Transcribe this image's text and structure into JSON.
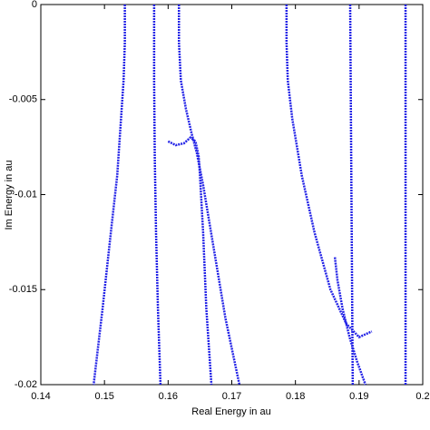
{
  "chart_data": {
    "type": "line",
    "x_label": "Real Energy in au",
    "y_label": "Im Energy in au",
    "xlim": [
      0.14,
      0.2
    ],
    "xticks": [
      0.14,
      0.15,
      0.16,
      0.17,
      0.18,
      0.19,
      0.2
    ],
    "ylim": [
      -0.02,
      0
    ],
    "yticks": [
      0,
      -0.005,
      -0.01,
      -0.015,
      -0.02
    ],
    "color": "#2323e6",
    "series": [
      {
        "x": [
          0.1532,
          0.1532,
          0.153,
          0.1526,
          0.152,
          0.151,
          0.1497,
          0.1483
        ],
        "values": [
          0,
          -0.002,
          -0.004,
          -0.006,
          -0.009,
          -0.012,
          -0.016,
          -0.02
        ]
      },
      {
        "x": [
          0.1578,
          0.1578,
          0.1579,
          0.1581,
          0.1584,
          0.1588
        ],
        "values": [
          0,
          -0.004,
          -0.008,
          -0.012,
          -0.016,
          -0.02
        ]
      },
      {
        "x": [
          0.1617,
          0.1617,
          0.162,
          0.1628,
          0.1637,
          0.1645,
          0.1655,
          0.167,
          0.169,
          0.1712
        ],
        "values": [
          0,
          -0.002,
          -0.004,
          -0.0055,
          -0.0068,
          -0.0078,
          -0.0095,
          -0.0125,
          -0.0165,
          -0.02
        ]
      },
      {
        "x": [
          0.16,
          0.1612,
          0.1625,
          0.1635,
          0.1643,
          0.1648,
          0.165,
          0.1655,
          0.166,
          0.1668
        ],
        "values": [
          -0.0072,
          -0.0074,
          -0.0073,
          -0.007,
          -0.0072,
          -0.008,
          -0.009,
          -0.012,
          -0.016,
          -0.02
        ]
      },
      {
        "x": [
          0.1786,
          0.1786,
          0.1788,
          0.1795,
          0.181,
          0.183,
          0.1855,
          0.188,
          0.19,
          0.192
        ],
        "values": [
          0,
          -0.002,
          -0.004,
          -0.006,
          -0.009,
          -0.012,
          -0.015,
          -0.0168,
          -0.0175,
          -0.0172
        ]
      },
      {
        "x": [
          0.1886,
          0.1887,
          0.1888,
          0.1889,
          0.189
        ],
        "values": [
          0,
          -0.005,
          -0.01,
          -0.015,
          -0.02
        ]
      },
      {
        "x": [
          0.1973,
          0.1973,
          0.1973
        ],
        "values": [
          0,
          -0.01,
          -0.02
        ]
      },
      {
        "x": [
          0.1862,
          0.1866,
          0.1874,
          0.1885,
          0.1897,
          0.191
        ],
        "values": [
          -0.0133,
          -0.0145,
          -0.016,
          -0.0175,
          -0.0188,
          -0.02
        ]
      }
    ]
  }
}
